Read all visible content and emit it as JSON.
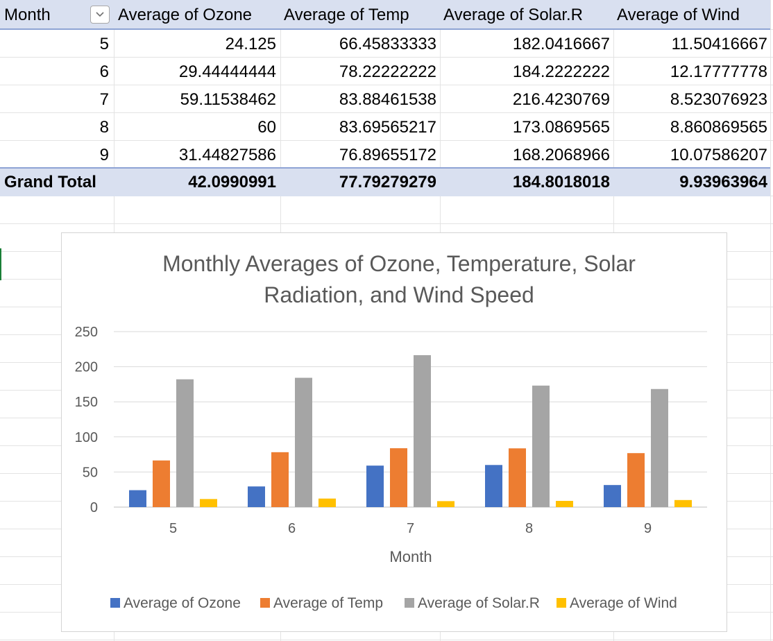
{
  "pivot": {
    "headers": [
      "Month",
      "Average of Ozone",
      "Average of Temp",
      "Average of Solar.R",
      "Average of Wind"
    ],
    "rows": [
      [
        "5",
        "24.125",
        "66.45833333",
        "182.0416667",
        "11.50416667"
      ],
      [
        "6",
        "29.44444444",
        "78.22222222",
        "184.2222222",
        "12.17777778"
      ],
      [
        "7",
        "59.11538462",
        "83.88461538",
        "216.4230769",
        "8.523076923"
      ],
      [
        "8",
        "60",
        "83.69565217",
        "173.0869565",
        "8.860869565"
      ],
      [
        "9",
        "31.44827586",
        "76.89655172",
        "168.2068966",
        "10.07586207"
      ]
    ],
    "total": [
      "Grand Total",
      "42.0990991",
      "77.79279279",
      "184.8018018",
      "9.93963964"
    ],
    "filter_icon": "chevron-down-icon"
  },
  "chart_data": {
    "type": "bar",
    "title": "Monthly Averages of Ozone, Temperature, Solar Radiation, and Wind Speed",
    "title_lines": [
      "Monthly Averages of Ozone, Temperature, Solar",
      "Radiation, and Wind Speed"
    ],
    "xlabel": "Month",
    "ylabel": "",
    "categories": [
      "5",
      "6",
      "7",
      "8",
      "9"
    ],
    "series": [
      {
        "name": "Average of Ozone",
        "color": "#4472c4",
        "values": [
          24.125,
          29.44444444,
          59.11538462,
          60,
          31.44827586
        ]
      },
      {
        "name": "Average of Temp",
        "color": "#ed7d31",
        "values": [
          66.45833333,
          78.22222222,
          83.88461538,
          83.69565217,
          76.89655172
        ]
      },
      {
        "name": "Average of Solar.R",
        "color": "#a5a5a5",
        "values": [
          182.0416667,
          184.2222222,
          216.4230769,
          173.0869565,
          168.2068966
        ]
      },
      {
        "name": "Average of Wind",
        "color": "#ffc000",
        "values": [
          11.50416667,
          12.17777778,
          8.523076923,
          8.860869565,
          10.07586207
        ]
      }
    ],
    "ylim": [
      0,
      250
    ],
    "yticks": [
      0,
      50,
      100,
      150,
      200,
      250
    ],
    "grid": true,
    "legend": "bottom"
  }
}
